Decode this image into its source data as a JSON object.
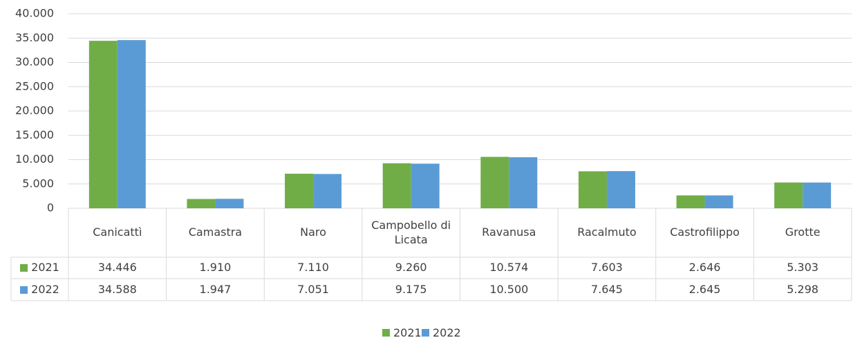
{
  "chart_data": {
    "type": "bar",
    "categories": [
      "Canicattì",
      "Camastra",
      "Naro",
      "Campobello di Licata",
      "Ravanusa",
      "Racalmuto",
      "Castrofilippo",
      "Grotte"
    ],
    "series": [
      {
        "name": "2021",
        "color": "#70ad47",
        "values": [
          34446,
          1910,
          7110,
          9260,
          10574,
          7603,
          2646,
          5303
        ],
        "value_labels": [
          "34.446",
          "1.910",
          "7.110",
          "9.260",
          "10.574",
          "7.603",
          "2.646",
          "5.303"
        ]
      },
      {
        "name": "2022",
        "color": "#5b9bd5",
        "values": [
          34588,
          1947,
          7051,
          9175,
          10500,
          7645,
          2645,
          5298
        ],
        "value_labels": [
          "34.588",
          "1.947",
          "7.051",
          "9.175",
          "10.500",
          "7.645",
          "2.645",
          "5.298"
        ]
      }
    ],
    "ylim": [
      0,
      40000
    ],
    "yticks": [
      0,
      {
        "value": 5000,
        "label": "5.000"
      },
      {
        "value": 10000,
        "label": "10.000"
      },
      {
        "value": 15000,
        "label": "15.000"
      },
      {
        "value": 20000,
        "label": "20.000"
      },
      {
        "value": 25000,
        "label": "25.000"
      },
      {
        "value": 30000,
        "label": "30.000"
      },
      {
        "value": 35000,
        "label": "35.000"
      },
      {
        "value": 40000,
        "label": "40.000"
      }
    ],
    "grid": true
  }
}
